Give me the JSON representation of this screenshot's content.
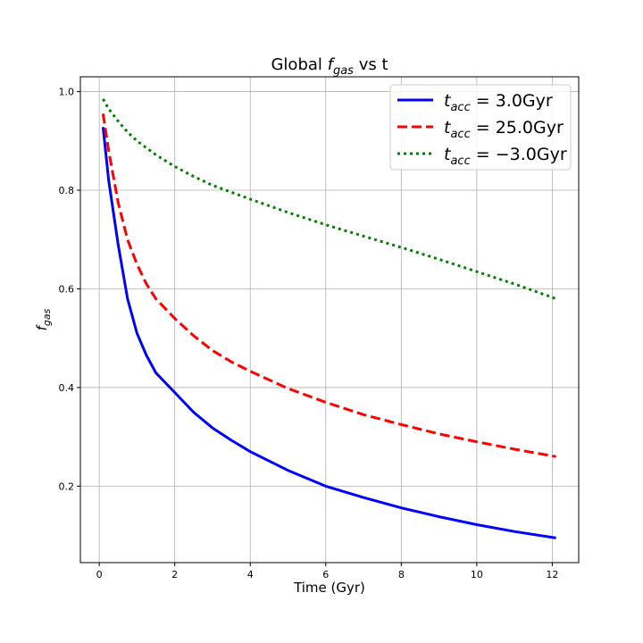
{
  "chart_data": {
    "type": "line",
    "title": {
      "prefix": "Global ",
      "var": "f",
      "sub": "gas",
      "suffix": " vs t"
    },
    "xlabel": "Time (Gyr)",
    "ylabel": {
      "var": "f",
      "sub": "gas"
    },
    "xlim": [
      -0.5,
      12.7
    ],
    "ylim": [
      0.045,
      1.03
    ],
    "xticks": [
      0,
      2,
      4,
      6,
      8,
      10,
      12
    ],
    "yticks": [
      0.2,
      0.4,
      0.6,
      0.8,
      1.0
    ],
    "xtick_labels": [
      "0",
      "2",
      "4",
      "6",
      "8",
      "10",
      "12"
    ],
    "ytick_labels": [
      "0.2",
      "0.4",
      "0.6",
      "0.8",
      "1.0"
    ],
    "grid": true,
    "legend_position": "top-right",
    "series": [
      {
        "label": {
          "var": "t",
          "sub": "acc",
          "eq": " = 3.0Gyr"
        },
        "color": "#0000ff",
        "style": "solid",
        "x": [
          0.1,
          0.25,
          0.5,
          0.75,
          1.0,
          1.25,
          1.5,
          2.0,
          2.5,
          3.0,
          3.5,
          4.0,
          5.0,
          6.0,
          7.0,
          8.0,
          9.0,
          10.0,
          11.0,
          12.1
        ],
        "y": [
          0.928,
          0.82,
          0.69,
          0.58,
          0.51,
          0.465,
          0.43,
          0.39,
          0.35,
          0.318,
          0.293,
          0.27,
          0.232,
          0.2,
          0.177,
          0.156,
          0.138,
          0.122,
          0.108,
          0.095
        ]
      },
      {
        "label": {
          "var": "t",
          "sub": "acc",
          "eq": " = 25.0Gyr"
        },
        "color": "#ff0000",
        "style": "dashed",
        "x": [
          0.1,
          0.25,
          0.5,
          0.75,
          1.0,
          1.25,
          1.5,
          2.0,
          2.5,
          3.0,
          3.5,
          4.0,
          5.0,
          6.0,
          7.0,
          8.0,
          9.0,
          10.0,
          11.0,
          12.1
        ],
        "y": [
          0.955,
          0.88,
          0.775,
          0.7,
          0.65,
          0.61,
          0.58,
          0.54,
          0.505,
          0.475,
          0.452,
          0.433,
          0.398,
          0.37,
          0.345,
          0.325,
          0.306,
          0.29,
          0.275,
          0.26
        ]
      },
      {
        "label": {
          "var": "t",
          "sub": "acc",
          "eq": " = −3.0Gyr"
        },
        "color": "#008000",
        "style": "dotted",
        "x": [
          0.1,
          0.25,
          0.5,
          0.75,
          1.0,
          1.5,
          2.0,
          2.5,
          3.0,
          4.0,
          5.0,
          6.0,
          7.0,
          8.0,
          9.0,
          10.0,
          11.0,
          12.1
        ],
        "y": [
          0.985,
          0.965,
          0.94,
          0.918,
          0.9,
          0.872,
          0.848,
          0.828,
          0.81,
          0.782,
          0.755,
          0.73,
          0.707,
          0.684,
          0.66,
          0.635,
          0.61,
          0.58
        ]
      }
    ]
  }
}
